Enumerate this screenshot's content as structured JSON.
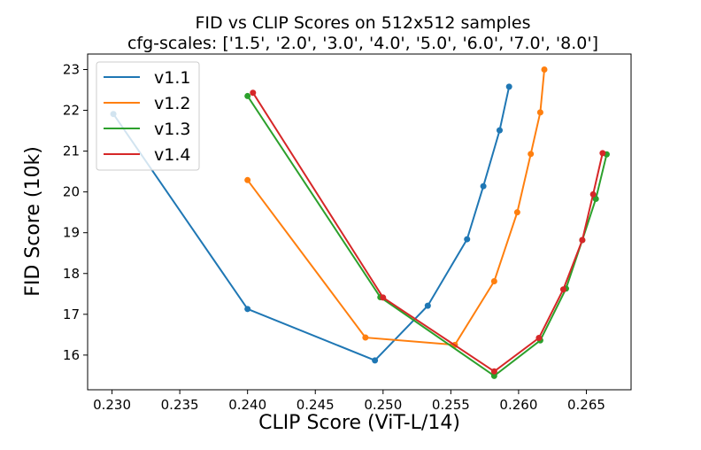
{
  "chart_data": {
    "type": "line",
    "title": "FID vs CLIP Scores on 512x512 samples",
    "subtitle": "cfg-scales: ['1.5', '2.0', '3.0', '4.0', '5.0', '6.0', '7.0', '8.0']",
    "xlabel": "CLIP Score (ViT-L/14)",
    "ylabel": "FID Score (10k)",
    "xlim": [
      0.2282,
      0.2683
    ],
    "ylim": [
      15.15,
      23.38
    ],
    "xticks": [
      "0.230",
      "0.235",
      "0.240",
      "0.245",
      "0.250",
      "0.255",
      "0.260",
      "0.265"
    ],
    "yticks": [
      "16",
      "17",
      "18",
      "19",
      "20",
      "21",
      "22",
      "23"
    ],
    "grid": false,
    "legend": "top-left",
    "markers": true,
    "series": [
      {
        "name": "v1.1",
        "color": "#1f77b4",
        "x": [
          0.2301,
          0.24,
          0.2494,
          0.2533,
          0.2562,
          0.2574,
          0.2586,
          0.2593
        ],
        "y": [
          21.91,
          17.13,
          15.87,
          17.21,
          18.84,
          20.14,
          21.51,
          22.58
        ]
      },
      {
        "name": "v1.2",
        "color": "#ff7f0e",
        "x": [
          0.24,
          0.2487,
          0.2553,
          0.2582,
          0.2599,
          0.2609,
          0.2616,
          0.2619
        ],
        "y": [
          20.29,
          16.43,
          16.25,
          17.81,
          19.5,
          20.93,
          21.95,
          23.0
        ]
      },
      {
        "name": "v1.3",
        "color": "#2ca02c",
        "x": [
          0.24,
          0.2498,
          0.2582,
          0.2616,
          0.2635,
          0.2647,
          0.2657,
          0.2665
        ],
        "y": [
          22.35,
          17.42,
          15.49,
          16.36,
          17.63,
          18.82,
          19.83,
          20.92
        ]
      },
      {
        "name": "v1.4",
        "color": "#d62728",
        "x": [
          0.2404,
          0.25,
          0.2582,
          0.2615,
          0.2633,
          0.2647,
          0.2655,
          0.2662
        ],
        "y": [
          22.43,
          17.41,
          15.6,
          16.42,
          17.61,
          18.82,
          19.94,
          20.95
        ]
      }
    ]
  }
}
